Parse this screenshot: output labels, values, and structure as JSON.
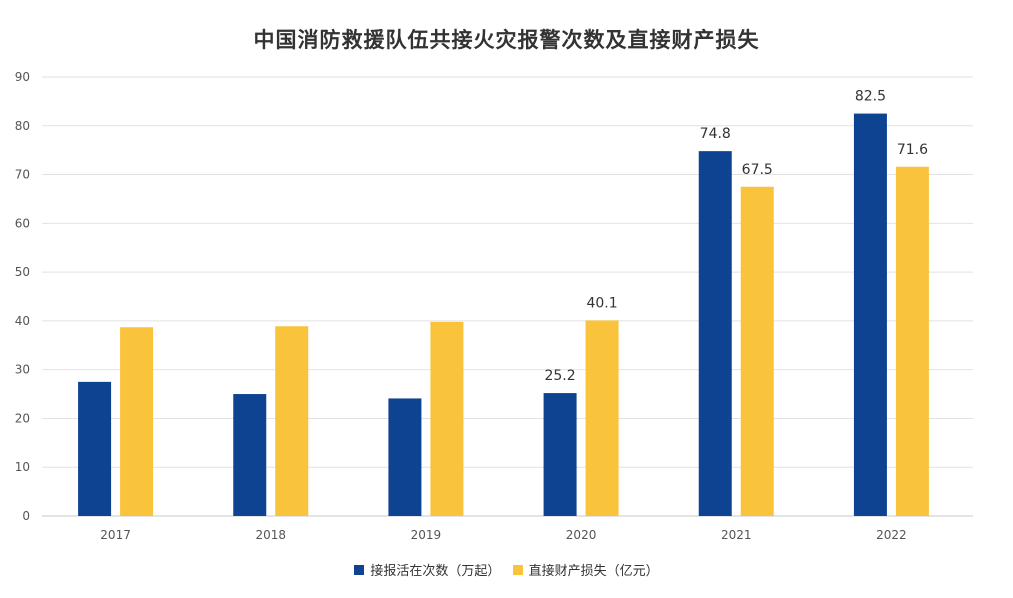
{
  "chart_data": {
    "type": "bar",
    "title": "中国消防救援队伍共接火灾报警次数及直接财产损失",
    "categories": [
      "2017",
      "2018",
      "2019",
      "2020",
      "2021",
      "2022"
    ],
    "ylim": [
      0,
      90
    ],
    "yticks": [
      0,
      10,
      20,
      30,
      40,
      50,
      60,
      70,
      80,
      90
    ],
    "grid": true,
    "legend_position": "bottom",
    "series": [
      {
        "name": "接报活在次数（万起）",
        "color": "#0D4391",
        "values": [
          27.5,
          25.0,
          24.1,
          25.2,
          74.8,
          82.5
        ],
        "labels": [
          "",
          "",
          "",
          "25.2",
          "74.8",
          "82.5"
        ]
      },
      {
        "name": "直接财产损失（亿元）",
        "color": "#F9C33C",
        "values": [
          38.7,
          38.9,
          39.8,
          40.1,
          67.5,
          71.6
        ],
        "labels": [
          "",
          "",
          "",
          "40.1",
          "67.5",
          "71.6"
        ]
      }
    ]
  }
}
